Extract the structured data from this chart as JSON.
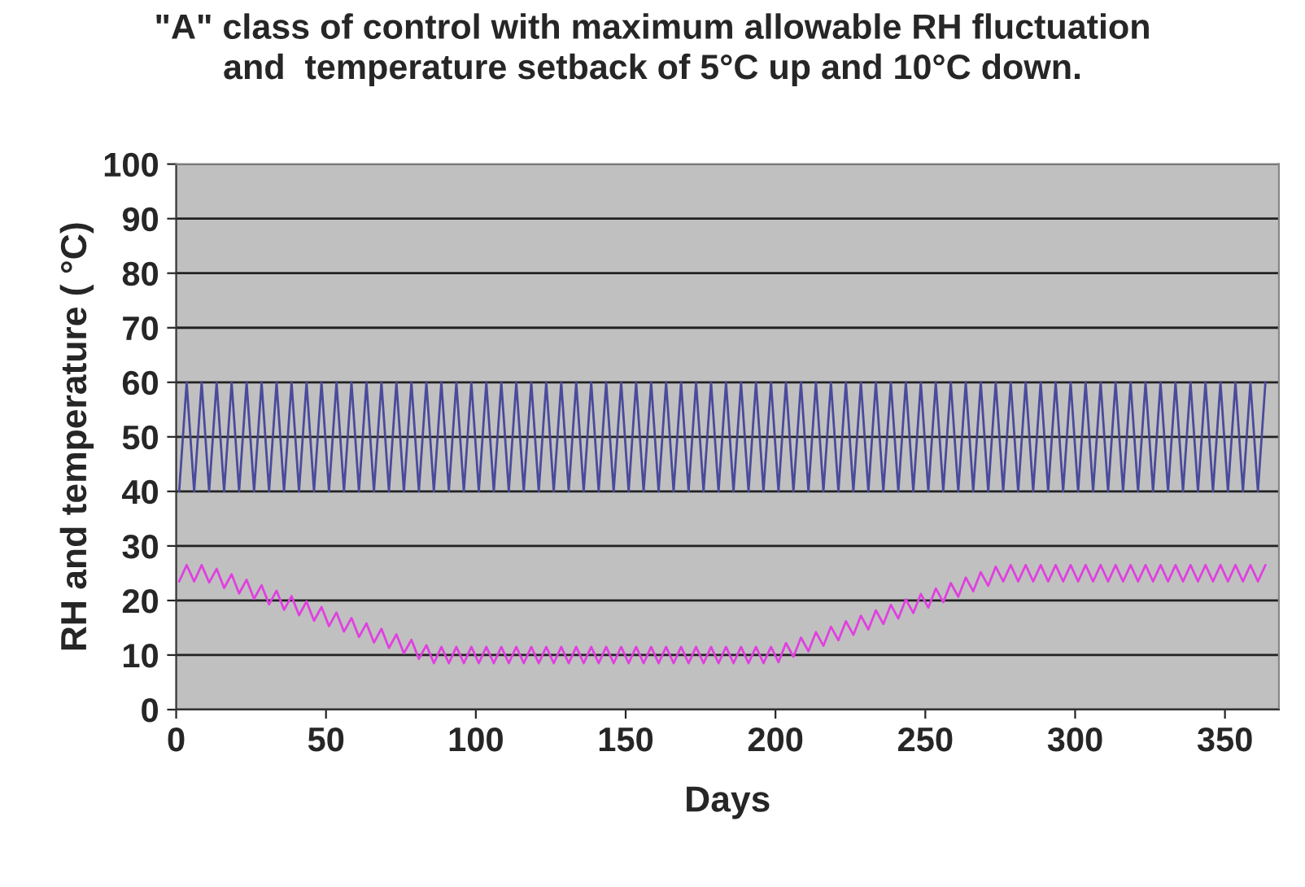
{
  "chart_data": {
    "type": "line",
    "title": "\"A\" class of control with maximum allowable RH fluctuation\nand  temperature setback of 5°C up and 10°C down.",
    "xlabel": "Days",
    "ylabel": "RH and temperature ( °C)",
    "x": [
      1,
      3.5,
      6,
      8.5,
      11,
      13.5,
      16,
      18.5,
      21,
      23.5,
      26,
      28.5,
      31,
      33.5,
      36,
      38.5,
      41,
      43.5,
      46,
      48.5,
      51,
      53.5,
      56,
      58.5,
      61,
      63.5,
      66,
      68.5,
      71,
      73.5,
      76,
      78.5,
      81,
      83.5,
      86,
      88.5,
      91,
      93.5,
      96,
      98.5,
      101,
      103.5,
      106,
      108.5,
      111,
      113.5,
      116,
      118.5,
      121,
      123.5,
      126,
      128.5,
      131,
      133.5,
      136,
      138.5,
      141,
      143.5,
      146,
      148.5,
      151,
      153.5,
      156,
      158.5,
      161,
      163.5,
      166,
      168.5,
      171,
      173.5,
      176,
      178.5,
      181,
      183.5,
      186,
      188.5,
      191,
      193.5,
      196,
      198.5,
      201,
      203.5,
      206,
      208.5,
      211,
      213.5,
      216,
      218.5,
      221,
      223.5,
      226,
      228.5,
      231,
      233.5,
      236,
      238.5,
      241,
      243.5,
      246,
      248.5,
      251,
      253.5,
      256,
      258.5,
      261,
      263.5,
      266,
      268.5,
      271,
      273.5,
      276,
      278.5,
      281,
      283.5,
      286,
      288.5,
      291,
      293.5,
      296,
      298.5,
      301,
      303.5,
      306,
      308.5,
      311,
      313.5,
      316,
      318.5,
      321,
      323.5,
      326,
      328.5,
      331,
      333.5,
      336,
      338.5,
      341,
      343.5,
      346,
      348.5,
      351,
      353.5,
      356,
      358.5,
      361,
      363.5
    ],
    "series": [
      {
        "color": "#4a4a9c",
        "values": [
          40,
          60,
          40,
          60,
          40,
          60,
          40,
          60,
          40,
          60,
          40,
          60,
          40,
          60,
          40,
          60,
          40,
          60,
          40,
          60,
          40,
          60,
          40,
          60,
          40,
          60,
          40,
          60,
          40,
          60,
          40,
          60,
          40,
          60,
          40,
          60,
          40,
          60,
          40,
          60,
          40,
          60,
          40,
          60,
          40,
          60,
          40,
          60,
          40,
          60,
          40,
          60,
          40,
          60,
          40,
          60,
          40,
          60,
          40,
          60,
          40,
          60,
          40,
          60,
          40,
          60,
          40,
          60,
          40,
          60,
          40,
          60,
          40,
          60,
          40,
          60,
          40,
          60,
          40,
          60,
          40,
          60,
          40,
          60,
          40,
          60,
          40,
          60,
          40,
          60,
          40,
          60,
          40,
          60,
          40,
          60,
          40,
          60,
          40,
          60,
          40,
          60,
          40,
          60,
          40,
          60,
          40,
          60,
          40,
          60,
          40,
          60,
          40,
          60,
          40,
          60,
          40,
          60,
          40,
          60,
          40,
          60,
          40,
          60,
          40,
          60,
          40,
          60,
          40,
          60,
          40,
          60,
          40,
          60,
          40,
          60,
          40,
          60,
          40,
          60,
          40,
          60,
          40,
          60,
          40,
          60
        ]
      },
      {
        "color": "#e040e0",
        "values": [
          23.5,
          26.5,
          23.5,
          26.5,
          23.3,
          25.8,
          22.3,
          24.8,
          21.3,
          23.8,
          20.3,
          22.8,
          19.3,
          21.8,
          18.3,
          20.8,
          17.3,
          19.8,
          16.3,
          18.8,
          15.3,
          17.8,
          14.3,
          16.8,
          13.3,
          15.8,
          12.3,
          14.8,
          11.3,
          13.8,
          10.3,
          12.8,
          9.3,
          11.8,
          8.5,
          11.5,
          8.5,
          11.5,
          8.5,
          11.5,
          8.5,
          11.5,
          8.5,
          11.5,
          8.5,
          11.5,
          8.5,
          11.5,
          8.5,
          11.5,
          8.5,
          11.5,
          8.5,
          11.5,
          8.5,
          11.5,
          8.5,
          11.5,
          8.5,
          11.5,
          8.5,
          11.5,
          8.5,
          11.5,
          8.5,
          11.5,
          8.5,
          11.5,
          8.5,
          11.5,
          8.5,
          11.5,
          8.5,
          11.5,
          8.5,
          11.5,
          8.5,
          11.5,
          8.5,
          11.5,
          8.7,
          12.2,
          9.7,
          13.2,
          10.7,
          14.2,
          11.7,
          15.2,
          12.7,
          16.2,
          13.7,
          17.2,
          14.7,
          18.2,
          15.7,
          19.2,
          16.7,
          20.2,
          17.7,
          21.2,
          18.7,
          22.2,
          19.7,
          23.2,
          20.7,
          24.2,
          21.7,
          25.2,
          22.7,
          26.2,
          23.5,
          26.5,
          23.5,
          26.5,
          23.5,
          26.5,
          23.5,
          26.5,
          23.5,
          26.5,
          23.5,
          26.5,
          23.5,
          26.5,
          23.5,
          26.5,
          23.5,
          26.5,
          23.5,
          26.5,
          23.5,
          26.5,
          23.5,
          26.5,
          23.5,
          26.5,
          23.5,
          26.5,
          23.5,
          26.5,
          23.5,
          26.5,
          23.5,
          26.5,
          23.5,
          26.5
        ]
      }
    ],
    "xlim": [
      0,
      368
    ],
    "xticks": [
      0,
      50,
      100,
      150,
      200,
      250,
      300,
      350
    ],
    "ylim": [
      0,
      100
    ],
    "yticks": [
      0,
      10,
      20,
      30,
      40,
      50,
      60,
      70,
      80,
      90,
      100
    ],
    "grid": "y",
    "marker": "none",
    "line_style": "solid"
  }
}
